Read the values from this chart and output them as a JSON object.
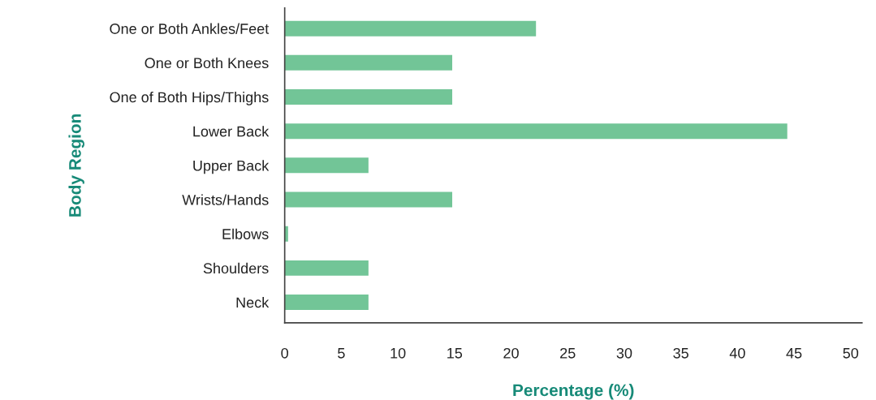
{
  "chart_data": {
    "type": "bar",
    "orientation": "horizontal",
    "xlabel": "Percentage (%)",
    "ylabel": "Body Region",
    "categories": [
      "One or Both Ankles/Feet",
      "One or Both Knees",
      "One of Both Hips/Thighs",
      "Lower Back",
      "Upper Back",
      "Wrists/Hands",
      "Elbows",
      "Shoulders",
      "Neck"
    ],
    "values": [
      22.2,
      14.8,
      14.8,
      44.4,
      7.4,
      14.8,
      0.3,
      7.4,
      7.4
    ],
    "color": "#72c597",
    "xlim": [
      0,
      51
    ],
    "xticks": [
      0,
      5,
      10,
      15,
      20,
      25,
      30,
      35,
      40,
      45,
      50
    ],
    "grid": false,
    "legend": false
  }
}
